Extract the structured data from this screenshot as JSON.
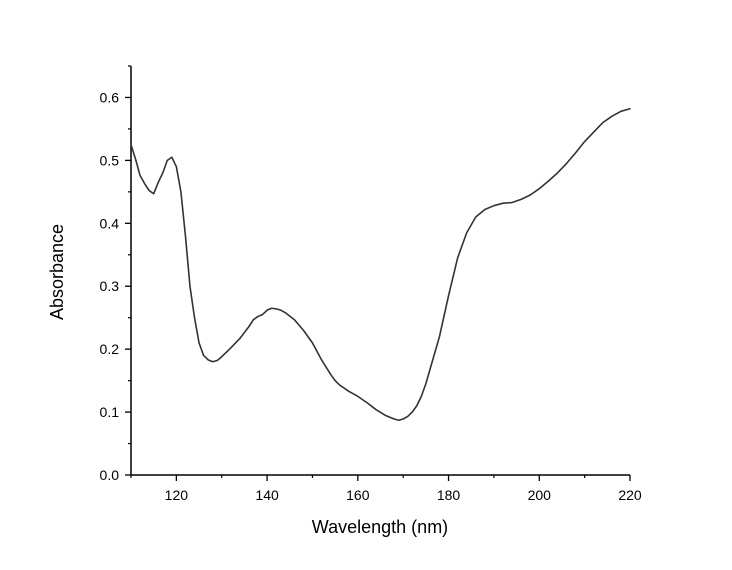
{
  "chart_data": {
    "type": "line",
    "title": "",
    "xlabel": "Wavelength (nm)",
    "ylabel": "Absorbance",
    "xlim": [
      110,
      220
    ],
    "ylim": [
      0.0,
      0.65
    ],
    "grid": false,
    "x_ticks": [
      120,
      140,
      160,
      180,
      200,
      220
    ],
    "x_tick_labels": [
      "120",
      "140",
      "160",
      "180",
      "200",
      "220"
    ],
    "y_ticks": [
      0.0,
      0.1,
      0.2,
      0.3,
      0.4,
      0.5,
      0.6
    ],
    "y_tick_labels": [
      "0.0",
      "0.1",
      "0.2",
      "0.3",
      "0.4",
      "0.5",
      "0.6"
    ],
    "colors": {
      "line": "#333333",
      "axis": "#000000"
    },
    "series": [
      {
        "x": [
          110,
          111,
          112,
          113,
          114,
          115,
          116,
          117,
          118,
          119,
          120,
          121,
          122,
          123,
          124,
          125,
          126,
          127,
          128,
          129,
          130,
          132,
          134,
          136,
          137,
          138,
          139,
          140,
          141,
          142,
          143,
          144,
          146,
          148,
          150,
          152,
          154,
          155,
          156,
          158,
          160,
          162,
          164,
          166,
          168,
          169,
          170,
          171,
          172,
          173,
          174,
          175,
          176,
          178,
          180,
          182,
          184,
          186,
          188,
          190,
          192,
          194,
          196,
          198,
          200,
          202,
          204,
          206,
          208,
          210,
          212,
          214,
          216,
          218,
          220
        ],
        "y": [
          0.525,
          0.502,
          0.476,
          0.463,
          0.452,
          0.447,
          0.465,
          0.48,
          0.5,
          0.505,
          0.49,
          0.45,
          0.38,
          0.3,
          0.25,
          0.21,
          0.19,
          0.183,
          0.18,
          0.182,
          0.188,
          0.202,
          0.217,
          0.236,
          0.247,
          0.252,
          0.255,
          0.262,
          0.265,
          0.264,
          0.262,
          0.258,
          0.247,
          0.23,
          0.21,
          0.183,
          0.16,
          0.15,
          0.143,
          0.133,
          0.125,
          0.115,
          0.104,
          0.095,
          0.089,
          0.087,
          0.089,
          0.093,
          0.1,
          0.11,
          0.125,
          0.145,
          0.17,
          0.22,
          0.285,
          0.345,
          0.385,
          0.41,
          0.422,
          0.428,
          0.432,
          0.433,
          0.438,
          0.445,
          0.455,
          0.467,
          0.48,
          0.495,
          0.512,
          0.53,
          0.545,
          0.56,
          0.57,
          0.578,
          0.582
        ]
      }
    ]
  }
}
